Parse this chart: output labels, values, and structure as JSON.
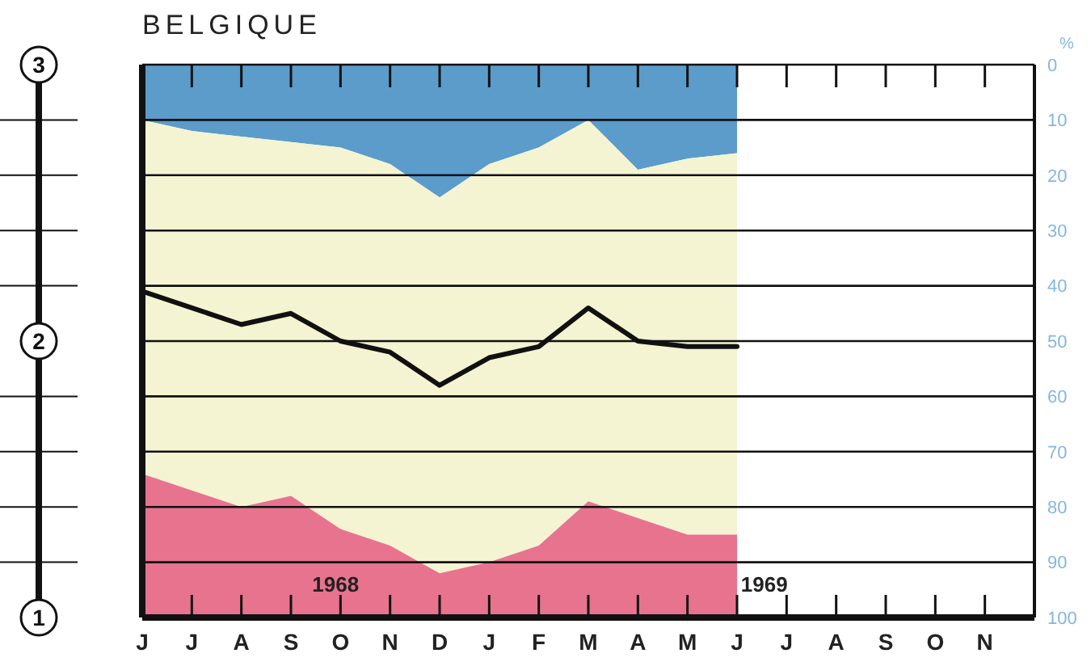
{
  "chart_data": {
    "type": "area",
    "title": "BELGIQUE",
    "ylabel": "%",
    "categories": [
      "J",
      "J",
      "A",
      "S",
      "O",
      "N",
      "D",
      "J",
      "F",
      "M",
      "A",
      "M",
      "J",
      "J",
      "A",
      "S",
      "O",
      "N"
    ],
    "stacked": true,
    "series": [
      {
        "color": "#5b9ccb",
        "values": [
          10,
          12,
          13,
          14,
          15,
          18,
          24,
          18,
          15,
          10,
          19,
          17,
          16,
          null,
          null,
          null,
          null,
          null
        ]
      },
      {
        "color": "#f4f4d2",
        "values": [
          64,
          65,
          67,
          64,
          69,
          69,
          68,
          72,
          72,
          69,
          63,
          68,
          69,
          null,
          null,
          null,
          null,
          null
        ]
      },
      {
        "color": "#e8738f",
        "values": [
          26,
          23,
          20,
          22,
          16,
          13,
          8,
          10,
          13,
          21,
          18,
          15,
          15,
          null,
          null,
          null,
          null,
          null
        ]
      },
      {
        "type": "line",
        "color": "#111111",
        "values": [
          41,
          44,
          47,
          45,
          50,
          52,
          58,
          53,
          51,
          44,
          50,
          51,
          51,
          null,
          null,
          null,
          null,
          null
        ]
      }
    ],
    "ylim": [
      100,
      0
    ],
    "yticks": [
      0,
      10,
      20,
      30,
      40,
      50,
      60,
      70,
      80,
      90,
      100
    ],
    "y2lim": [
      1,
      3
    ],
    "y2ticks": [
      1,
      {
        "value": 1.2,
        "label": null
      },
      {
        "value": 1.4,
        "label": null
      },
      {
        "value": 1.6,
        "label": null
      },
      {
        "value": 1.8,
        "label": null
      },
      2,
      {
        "value": 2.2,
        "label": null
      },
      {
        "value": 2.4,
        "label": null
      },
      {
        "value": 2.6,
        "label": null
      },
      {
        "value": 2.8,
        "label": null
      },
      3
    ],
    "grid": "y",
    "marker": "none",
    "line_style": "solid",
    "annotations": [
      "1968",
      "1969"
    ]
  }
}
